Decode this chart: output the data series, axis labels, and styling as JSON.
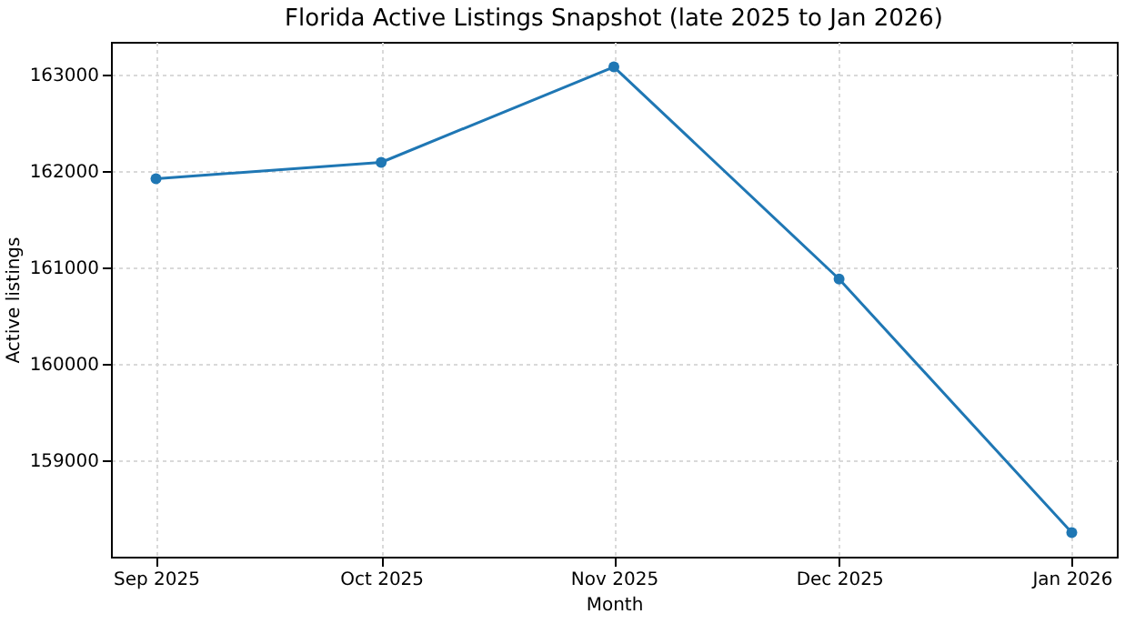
{
  "chart_data": {
    "type": "line",
    "title": "Florida Active Listings Snapshot (late 2025 to Jan 2026)",
    "xlabel": "Month",
    "ylabel": "Active listings",
    "x": [
      "2025-09-01",
      "2025-10-01",
      "2025-11-01",
      "2025-12-01",
      "2026-01-01"
    ],
    "series": [
      {
        "color": "#1f77b4",
        "values": [
          161920,
          162090,
          163080,
          160880,
          158250
        ]
      }
    ],
    "xlim": [
      "2025-08-26",
      "2026-01-07"
    ],
    "xticks": [
      {
        "value": "2025-09-01",
        "label": "Sep 2025"
      },
      {
        "value": "2025-10-01",
        "label": "Oct 2025"
      },
      {
        "value": "2025-11-01",
        "label": "Nov 2025"
      },
      {
        "value": "2025-12-01",
        "label": "Dec 2025"
      },
      {
        "value": "2026-01-01",
        "label": "Jan 2026"
      }
    ],
    "ylim": [
      158000,
      163340
    ],
    "yticks": [
      159000,
      160000,
      161000,
      162000,
      163000
    ],
    "grid": true,
    "marker": "circle",
    "line_style": "solid"
  }
}
